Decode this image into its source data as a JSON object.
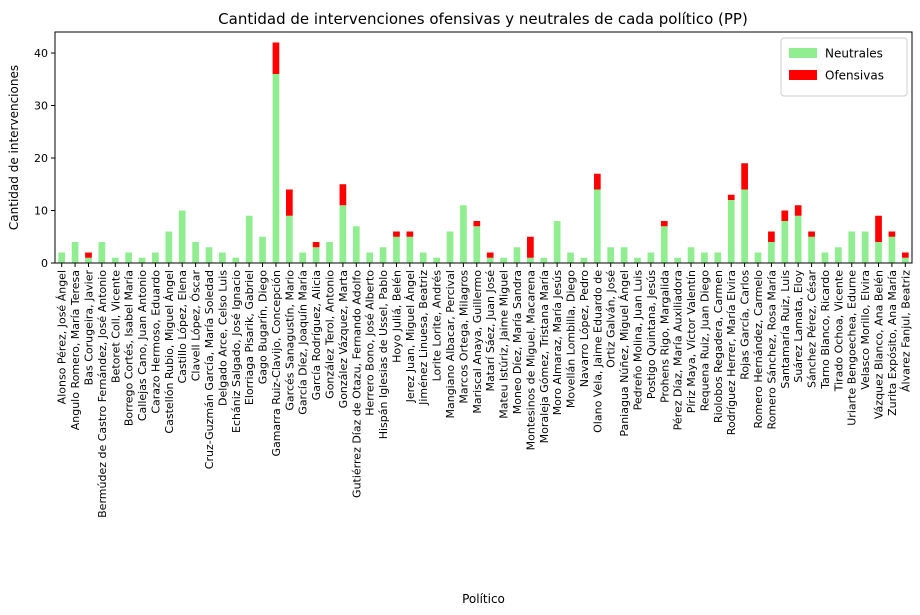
{
  "chart_data": {
    "type": "bar",
    "stacked": true,
    "title": "Cantidad de intervenciones ofensivas y neutrales de cada político (PP)",
    "xlabel": "Político",
    "ylabel": "Cantidad de intervenciones",
    "ylim": [
      0,
      44
    ],
    "yticks": [
      0,
      10,
      20,
      30,
      40
    ],
    "grid": false,
    "legend_position": "top-right",
    "categories": [
      "Alonso Pérez, José Ángel",
      "Angulo Romero, María Teresa",
      "Bas Corugeira, Javier",
      "Bermúdez de Castro Fernández, José Antonio",
      "Betoret Coll, Vicente",
      "Borrego Cortés, Isabel María",
      "Callejas Cano, Juan Antonio",
      "Carazo Hermoso, Eduardo",
      "Castellón Rubio, Miguel Ángel",
      "Castillo López, Elena",
      "Clavell López, Óscar",
      "Cruz-Guzmán García, María Soledad",
      "Delgado Arce, Celso Luis",
      "Echániz Salgado, José Ignacio",
      "Elorriaga Pisarik, Gabriel",
      "Gago Bugarín, Diego",
      "Gamarra Ruiz-Clavijo, Concepción",
      "Garcés Sanagustín, Mario",
      "García Díez, Joaquín María",
      "García Rodríguez, Alicia",
      "González Terol, Antonio",
      "González Vázquez, Marta",
      "Gutiérrez Díaz de Otazu, Fernando Adolfo",
      "Herrero Bono, José Alberto",
      "Hispán Iglesias de Ussel, Pablo",
      "Hoyo Juliá, Belén",
      "Jerez Juan, Miguel Ángel",
      "Jiménez Linuesa, Beatriz",
      "Lorite Lorite, Andrés",
      "Mangiano Albacar, Percival",
      "Marcos Ortega, Milagros",
      "Mariscal Anaya, Guillermo",
      "Matarí Sáez, Juan José",
      "Mateu Istúriz, Jaime Miguel",
      "Moneo Díez, María Sandra",
      "Montesinos de Miguel, Macarena",
      "Moraleja Gómez, Tristana María",
      "Moro Almaraz, María Jesús",
      "Movellán Lombilla, Diego",
      "Navarro López, Pedro",
      "Olano Vela, Jaime Eduardo de",
      "Ortiz Galván, José",
      "Paniagua Núñez, Miguel Ángel",
      "Pedreño Molina, Juan Luis",
      "Postigo Quintana, Jesús",
      "Prohens Rigo, Margalida",
      "Pérez Díaz, María Auxiliadora",
      "Píriz Maya, Víctor Valentín",
      "Requena Ruiz, Juan Diego",
      "Riolobos Regadera, Carmen",
      "Rodríguez Herrer, María Elvira",
      "Rojas García, Carlos",
      "Romero Hernández, Carmelo",
      "Romero Sánchez, Rosa María",
      "Santamaría Ruiz, Luis",
      "Suárez Lamata, Eloy",
      "Sánchez Pérez, César",
      "Tarno Blanco, Ricardo",
      "Tirado Ochoa, Vicente",
      "Uriarte Bengoechea, Edurne",
      "Velasco Morillo, Elvira",
      "Vázquez Blanco, Ana Belén",
      "Zurita Expósito, Ana María",
      "Álvarez Fanjul, Beatriz"
    ],
    "series": [
      {
        "name": "Neutrales",
        "color": "#90ee90",
        "values": [
          2,
          4,
          1,
          4,
          1,
          2,
          1,
          2,
          6,
          10,
          4,
          3,
          2,
          1,
          9,
          5,
          36,
          9,
          2,
          3,
          4,
          11,
          7,
          2,
          3,
          5,
          5,
          2,
          1,
          6,
          11,
          7,
          1,
          1,
          3,
          1,
          1,
          8,
          2,
          1,
          14,
          3,
          3,
          1,
          2,
          7,
          1,
          3,
          2,
          2,
          12,
          14,
          2,
          4,
          8,
          9,
          5,
          2,
          3,
          6,
          6,
          4,
          5,
          1
        ]
      },
      {
        "name": "Ofensivas",
        "color": "#ff0000",
        "values": [
          0,
          0,
          1,
          0,
          0,
          0,
          0,
          0,
          0,
          0,
          0,
          0,
          0,
          0,
          0,
          0,
          6,
          5,
          0,
          1,
          0,
          4,
          0,
          0,
          0,
          1,
          1,
          0,
          0,
          0,
          0,
          1,
          1,
          0,
          0,
          4,
          0,
          0,
          0,
          0,
          3,
          0,
          0,
          0,
          0,
          1,
          0,
          0,
          0,
          0,
          1,
          5,
          0,
          2,
          2,
          2,
          1,
          0,
          0,
          0,
          0,
          5,
          1,
          1
        ]
      }
    ]
  }
}
